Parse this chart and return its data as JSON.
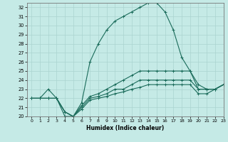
{
  "xlabel": "Humidex (Indice chaleur)",
  "xlim": [
    -0.5,
    23
  ],
  "ylim": [
    20,
    32.5
  ],
  "xticks": [
    0,
    1,
    2,
    3,
    4,
    5,
    6,
    7,
    8,
    9,
    10,
    11,
    12,
    13,
    14,
    15,
    16,
    17,
    18,
    19,
    20,
    21,
    22,
    23
  ],
  "yticks": [
    20,
    21,
    22,
    23,
    24,
    25,
    26,
    27,
    28,
    29,
    30,
    31,
    32
  ],
  "bg_color": "#c5eae6",
  "grid_color": "#aad4d0",
  "line_color": "#1a6b5a",
  "line1_x": [
    0,
    1,
    2,
    3,
    4,
    5,
    6,
    7,
    8,
    9,
    10,
    11,
    12,
    13,
    14,
    15,
    16,
    17,
    18,
    19,
    20,
    21,
    22,
    23
  ],
  "line1_y": [
    22,
    22,
    23,
    22,
    20,
    20,
    21.5,
    26,
    28,
    29.5,
    30.5,
    31,
    31.5,
    32,
    32.5,
    32.5,
    31.5,
    29.5,
    26.5,
    25,
    23.5,
    23,
    23,
    23.5
  ],
  "line2_x": [
    0,
    1,
    2,
    3,
    4,
    5,
    6,
    7,
    8,
    9,
    10,
    11,
    12,
    13,
    14,
    15,
    16,
    17,
    18,
    19,
    20,
    21,
    22,
    23
  ],
  "line2_y": [
    22,
    22,
    22,
    22,
    20.5,
    20,
    21.2,
    22.2,
    22.5,
    23,
    23.5,
    24,
    24.5,
    25,
    25,
    25,
    25,
    25,
    25,
    25,
    23,
    23,
    23,
    23.5
  ],
  "line3_x": [
    0,
    1,
    2,
    3,
    4,
    5,
    6,
    7,
    8,
    9,
    10,
    11,
    12,
    13,
    14,
    15,
    16,
    17,
    18,
    19,
    20,
    21,
    22,
    23
  ],
  "line3_y": [
    22,
    22,
    22,
    22,
    20.5,
    20,
    21,
    22,
    22.2,
    22.5,
    23,
    23,
    23.5,
    24,
    24,
    24,
    24,
    24,
    24,
    24,
    23,
    23,
    23,
    23.5
  ],
  "line4_x": [
    0,
    1,
    2,
    3,
    4,
    5,
    6,
    7,
    8,
    9,
    10,
    11,
    12,
    13,
    14,
    15,
    16,
    17,
    18,
    19,
    20,
    21,
    22,
    23
  ],
  "line4_y": [
    22,
    22,
    22,
    22,
    20.5,
    20,
    20.8,
    21.8,
    22,
    22.2,
    22.5,
    22.7,
    23,
    23.2,
    23.5,
    23.5,
    23.5,
    23.5,
    23.5,
    23.5,
    22.5,
    22.5,
    23,
    23.5
  ]
}
